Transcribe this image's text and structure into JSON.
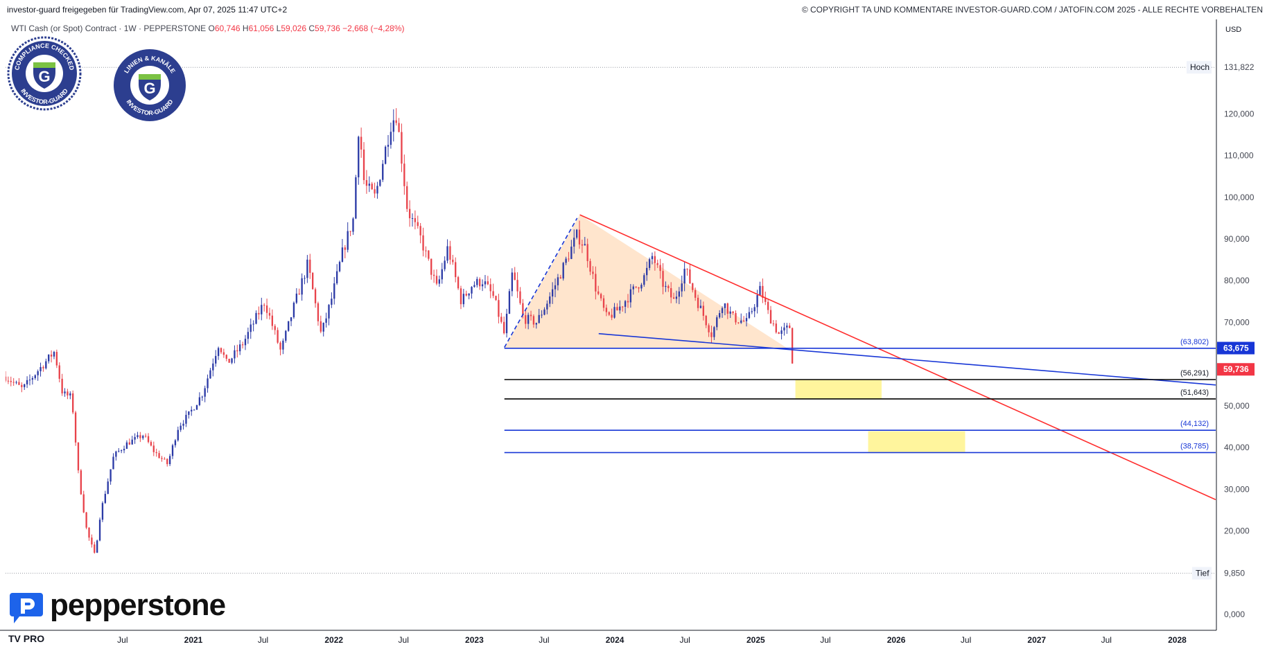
{
  "header": {
    "left_text": "investor-guard freigegeben für TradingView.com, Apr 07, 2025 11:47 UTC+2",
    "right_text": "© COPYRIGHT TA UND KOMMENTARE INVESTOR-GUARD.COM / JATOFIN.COM 2025 - ALLE RECHTE VORBEHALTEN"
  },
  "legend": {
    "symbol": "WTI Cash (or Spot) Contract · 1W · PEPPERSTONE",
    "o_key": "O",
    "o_val": "60,746",
    "h_key": "H",
    "h_val": "61,056",
    "l_key": "L",
    "l_val": "59,026",
    "c_key": "C",
    "c_val": "59,736",
    "change": "−2,668 (−4,28%)"
  },
  "badges": [
    {
      "top": "COMPLIANCE CHECKED",
      "bottom": "INVESTOR-GUARD",
      "letter": "G"
    },
    {
      "top": "LINIEN & KANÄLE",
      "bottom": "INVESTOR-GUARD",
      "letter": "G"
    }
  ],
  "brand": {
    "name": "pepperstone",
    "platform": "TV PRO"
  },
  "colors": {
    "up": "#2b3aa6",
    "down": "#e8434b",
    "resistance": "#ff2d2d",
    "support": "#1736d6",
    "target_zone": "#fff59d",
    "triangle_fill": "#ffe0c4"
  },
  "chart_data": {
    "type": "candlestick",
    "currency": "USD",
    "timeframe": "1W",
    "y_ticks": [
      0,
      10,
      20,
      30,
      40,
      50,
      60,
      70,
      80,
      90,
      100,
      110,
      120
    ],
    "y_tick_labels": [
      "0,000",
      "",
      "20,000",
      "30,000",
      "40,000",
      "50,000",
      "",
      "70,000",
      "80,000",
      "90,000",
      "100,000",
      "110,000",
      "120,000"
    ],
    "ylim": [
      -3,
      138
    ],
    "x_labels": [
      {
        "label": "Jul",
        "date": "2020-07-01"
      },
      {
        "label": "2021",
        "date": "2021-01-01"
      },
      {
        "label": "Jul",
        "date": "2021-07-01"
      },
      {
        "label": "2022",
        "date": "2022-01-01"
      },
      {
        "label": "Jul",
        "date": "2022-07-01"
      },
      {
        "label": "2023",
        "date": "2023-01-01"
      },
      {
        "label": "Jul",
        "date": "2023-07-01"
      },
      {
        "label": "2024",
        "date": "2024-01-01"
      },
      {
        "label": "Jul",
        "date": "2024-07-01"
      },
      {
        "label": "2025",
        "date": "2025-01-01"
      },
      {
        "label": "Jul",
        "date": "2025-07-01"
      },
      {
        "label": "2026",
        "date": "2026-01-01"
      },
      {
        "label": "Jul",
        "date": "2026-07-01"
      },
      {
        "label": "2027",
        "date": "2027-01-01"
      },
      {
        "label": "Jul",
        "date": "2027-07-01"
      },
      {
        "label": "2028",
        "date": "2028-01-01"
      }
    ],
    "xlim": [
      "2019-09-01",
      "2028-04-10"
    ],
    "price_path": [
      [
        "2019-09-01",
        57
      ],
      [
        "2019-10-15",
        54
      ],
      [
        "2019-11-20",
        58
      ],
      [
        "2020-01-06",
        63
      ],
      [
        "2020-01-27",
        53
      ],
      [
        "2020-02-20",
        52
      ],
      [
        "2020-03-09",
        33
      ],
      [
        "2020-03-30",
        20
      ],
      [
        "2020-04-20",
        14
      ],
      [
        "2020-05-04",
        24
      ],
      [
        "2020-06-08",
        38
      ],
      [
        "2020-07-13",
        41
      ],
      [
        "2020-08-24",
        43
      ],
      [
        "2020-09-21",
        39
      ],
      [
        "2020-10-26",
        36
      ],
      [
        "2020-11-23",
        45
      ],
      [
        "2020-12-21",
        48
      ],
      [
        "2021-01-25",
        53
      ],
      [
        "2021-03-08",
        65
      ],
      [
        "2021-03-29",
        60
      ],
      [
        "2021-05-10",
        65
      ],
      [
        "2021-07-05",
        75
      ],
      [
        "2021-08-16",
        63
      ],
      [
        "2021-09-20",
        74
      ],
      [
        "2021-10-25",
        84
      ],
      [
        "2021-11-29",
        67
      ],
      [
        "2021-12-27",
        76
      ],
      [
        "2022-01-24",
        87
      ],
      [
        "2022-02-21",
        95
      ],
      [
        "2022-03-07",
        118
      ],
      [
        "2022-03-21",
        103
      ],
      [
        "2022-04-18",
        100
      ],
      [
        "2022-05-30",
        118
      ],
      [
        "2022-06-13",
        120
      ],
      [
        "2022-07-11",
        97
      ],
      [
        "2022-08-15",
        90
      ],
      [
        "2022-09-26",
        78
      ],
      [
        "2022-10-24",
        88
      ],
      [
        "2022-11-28",
        75
      ],
      [
        "2022-12-26",
        79
      ],
      [
        "2023-01-23",
        80
      ],
      [
        "2023-02-20",
        76
      ],
      [
        "2023-03-20",
        67
      ],
      [
        "2023-04-10",
        82
      ],
      [
        "2023-05-08",
        71
      ],
      [
        "2023-06-12",
        70
      ],
      [
        "2023-07-10",
        75
      ],
      [
        "2023-08-14",
        82
      ],
      [
        "2023-09-11",
        88
      ],
      [
        "2023-09-25",
        91
      ],
      [
        "2023-10-16",
        88
      ],
      [
        "2023-11-13",
        78
      ],
      [
        "2023-12-11",
        71
      ],
      [
        "2024-01-08",
        73
      ],
      [
        "2024-02-12",
        77
      ],
      [
        "2024-03-18",
        81
      ],
      [
        "2024-04-08",
        86
      ],
      [
        "2024-05-06",
        79
      ],
      [
        "2024-06-03",
        75
      ],
      [
        "2024-07-01",
        83
      ],
      [
        "2024-07-29",
        76
      ],
      [
        "2024-09-09",
        67
      ],
      [
        "2024-10-07",
        75
      ],
      [
        "2024-11-04",
        71
      ],
      [
        "2024-12-09",
        70
      ],
      [
        "2025-01-13",
        78
      ],
      [
        "2025-02-03",
        72
      ],
      [
        "2025-03-03",
        67
      ],
      [
        "2025-03-31",
        69
      ],
      [
        "2025-04-07",
        59.7
      ]
    ],
    "all_time_high": 131.822,
    "all_time_low": 9.85,
    "high_label": "Hoch",
    "low_label": "Tief",
    "last_price": 59.736,
    "horizontal_levels": [
      {
        "value": 63.802,
        "label": "(63,802)",
        "color": "#1736d6",
        "start": "2023-03-20"
      },
      {
        "value": 56.291,
        "label": "(56,291)",
        "color": "#000000",
        "start": "2023-03-20"
      },
      {
        "value": 51.643,
        "label": "(51,643)",
        "color": "#000000",
        "start": "2023-03-20"
      },
      {
        "value": 44.132,
        "label": "(44,132)",
        "color": "#1736d6",
        "start": "2023-03-20"
      },
      {
        "value": 38.785,
        "label": "(38,785)",
        "color": "#1736d6",
        "start": "2023-03-20"
      }
    ],
    "price_badges": [
      {
        "value": 63.675,
        "label": "63,675",
        "color": "#1736d6"
      },
      {
        "value": 59.736,
        "label": "59,736",
        "color": "#f23645"
      }
    ],
    "trendlines": [
      {
        "name": "resistance",
        "color": "#ff2d2d",
        "from": [
          "2023-10-02",
          95.8
        ],
        "to": [
          "2028-04-10",
          27.5
        ]
      },
      {
        "name": "support",
        "color": "#1736d6",
        "from": [
          "2023-11-20",
          67.3
        ],
        "to": [
          "2028-04-10",
          55.0
        ]
      },
      {
        "name": "rally",
        "color": "#1736d6",
        "dashed": true,
        "from": [
          "2023-03-20",
          64.0
        ],
        "to": [
          "2023-09-25",
          95.0
        ]
      }
    ],
    "triangle": [
      [
        "2023-03-20",
        63.8
      ],
      [
        "2023-10-02",
        95.8
      ],
      [
        "2025-03-24",
        63.8
      ]
    ],
    "target_zones": [
      {
        "from": [
          "2025-04-14",
          56.2
        ],
        "to": [
          "2025-11-24",
          51.7
        ]
      },
      {
        "from": [
          "2025-10-20",
          43.9
        ],
        "to": [
          "2026-06-29",
          38.9
        ]
      }
    ]
  }
}
